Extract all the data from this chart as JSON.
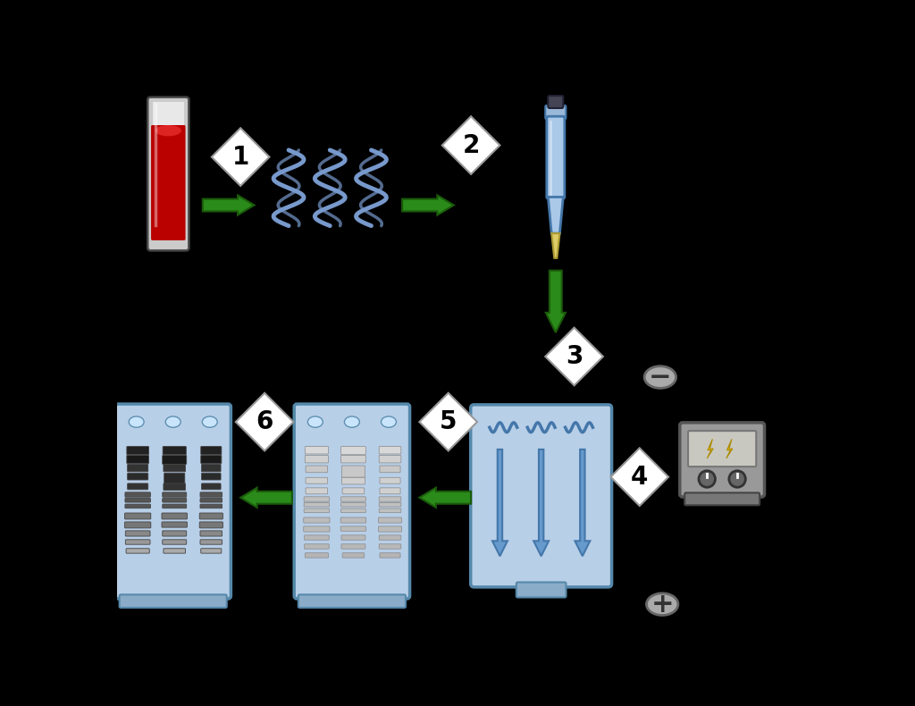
{
  "background_color": "#000000",
  "arrow_color": "#2a8a1a",
  "arrow_edge_color": "#1a5a0a",
  "diamond_color": "#ffffff",
  "diamond_edge_color": "#999999",
  "gel_color": "#b8cfe8",
  "gel_edge_color": "#5588aa",
  "gel_dark_color": "#8bacc8",
  "band_dark_color": "#333333",
  "band_light_color": "#cccccc",
  "pipette_body_color": "#aac8e8",
  "tube_red_color": "#cc1111",
  "tube_body_color": "#e8e8e8",
  "dna_color": "#7799cc",
  "dna_edge_color": "#5577aa",
  "power_body_color": "#aaaaaa",
  "power_screen_color": "#cccccc",
  "electrode_color": "#aaaaaa"
}
